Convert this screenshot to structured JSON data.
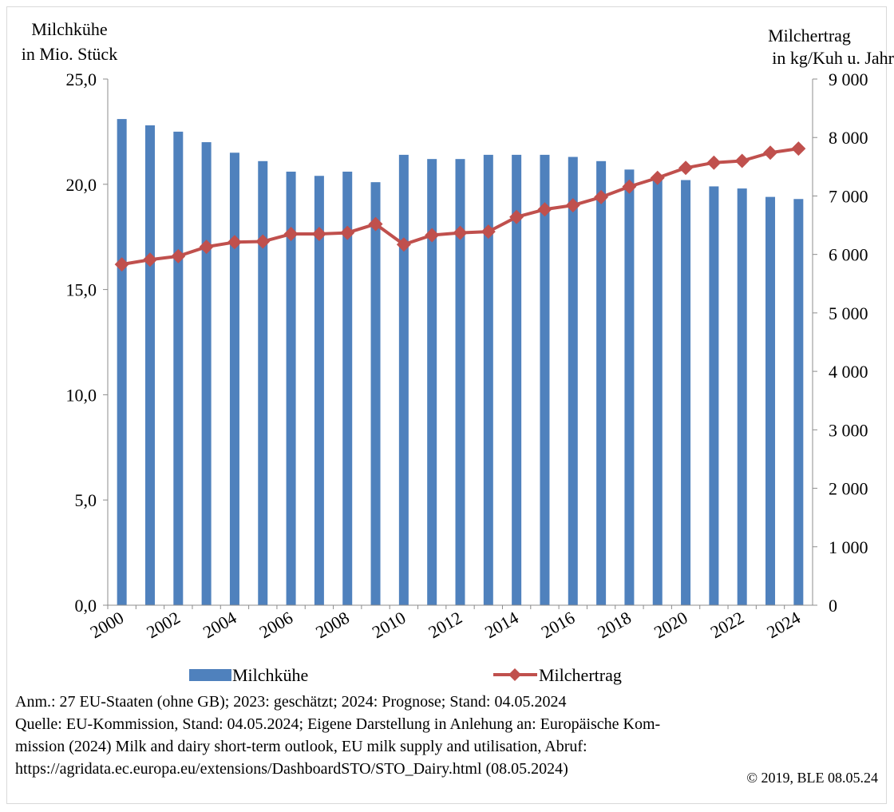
{
  "chart_data": {
    "type": "bar",
    "left_axis": {
      "title_line1": "Milchkühe",
      "title_line2": "in Mio. Stück",
      "ylim": [
        0,
        25
      ],
      "ticks": [
        "0,0",
        "5,0",
        "10,0",
        "15,0",
        "20,0",
        "25,0"
      ]
    },
    "right_axis": {
      "title_line1": "Milchertrag",
      "title_line2": "in kg/Kuh u. Jahr",
      "ylim": [
        0,
        9000
      ],
      "ticks": [
        "0",
        "1 000",
        "2 000",
        "3 000",
        "4 000",
        "5 000",
        "6 000",
        "7 000",
        "8 000",
        "9 000"
      ]
    },
    "x": [
      "2000",
      "2001",
      "2002",
      "2003",
      "2004",
      "2005",
      "2006",
      "2007",
      "2008",
      "2009",
      "2010",
      "2011",
      "2012",
      "2013",
      "2014",
      "2015",
      "2016",
      "2017",
      "2018",
      "2019",
      "2020",
      "2021",
      "2022",
      "2023",
      "2024"
    ],
    "x_tick_labels": [
      "2000",
      "2002",
      "2004",
      "2006",
      "2008",
      "2010",
      "2012",
      "2014",
      "2016",
      "2018",
      "2020",
      "2022",
      "2024"
    ],
    "series": [
      {
        "name": "Milchkühe",
        "type": "bar",
        "axis": "left",
        "color": "#4f81bd",
        "values": [
          23.1,
          22.8,
          22.5,
          22.0,
          21.5,
          21.1,
          20.6,
          20.4,
          20.6,
          20.1,
          21.4,
          21.2,
          21.2,
          21.4,
          21.4,
          21.4,
          21.3,
          21.1,
          20.7,
          20.3,
          20.2,
          19.9,
          19.8,
          19.4,
          19.3
        ]
      },
      {
        "name": "Milchertrag",
        "type": "line",
        "axis": "right",
        "color": "#c0504d",
        "marker": "diamond",
        "values": [
          5830,
          5910,
          5970,
          6130,
          6210,
          6220,
          6350,
          6350,
          6370,
          6520,
          6170,
          6330,
          6370,
          6390,
          6640,
          6770,
          6840,
          6980,
          7160,
          7310,
          7480,
          7570,
          7600,
          7740,
          7810
        ]
      }
    ],
    "grid": false,
    "legend_position": "bottom"
  },
  "notes": {
    "line1": "Anm.: 27 EU-Staaten (ohne GB); 2023: geschätzt; 2024: Prognose; Stand: 04.05.2024",
    "line2": "Quelle: EU-Kommission, Stand: 04.05.2024; Eigene Darstellung in Anlehung an: Europäische Kom-",
    "line3": "mission (2024) Milk and dairy short-term outlook, EU milk supply and utilisation, Abruf:",
    "line4": "https://agridata.ec.europa.eu/extensions/DashboardSTO/STO_Dairy.html (08.05.2024)",
    "copyright": "© 2019, BLE 08.05.24"
  }
}
